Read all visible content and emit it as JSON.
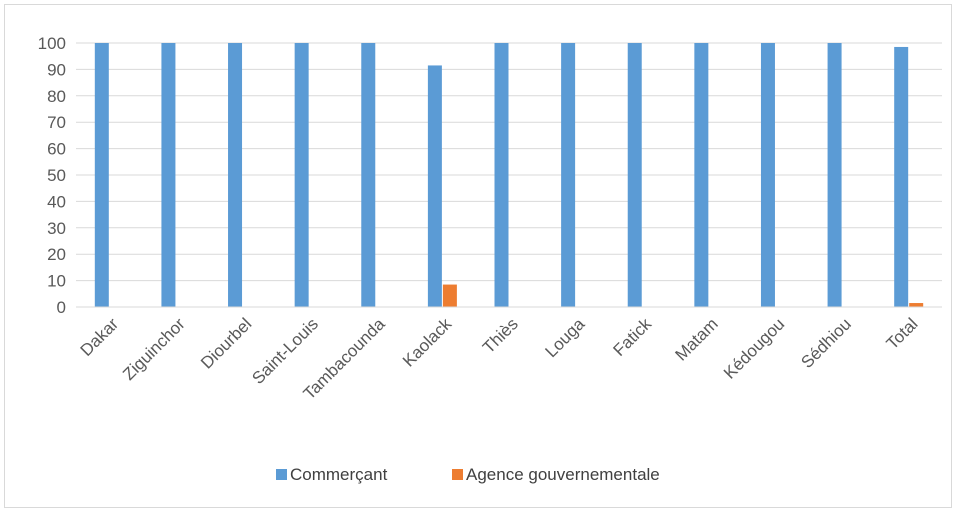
{
  "chart_data": {
    "type": "bar",
    "categories": [
      "Dakar",
      "Ziguinchor",
      "Diourbel",
      "Saint-Louis",
      "Tambacounda",
      "Kaolack",
      "Thiès",
      "Louga",
      "Fatick",
      "Matam",
      "Kédougou",
      "Sédhiou",
      "Total"
    ],
    "series": [
      {
        "name": "Commerçant",
        "color": "#5b9bd5",
        "values": [
          100,
          100,
          100,
          100,
          100,
          91.5,
          100,
          100,
          100,
          100,
          100,
          100,
          98.5
        ]
      },
      {
        "name": "Agence gouvernementale",
        "color": "#ed7d31",
        "values": [
          0,
          0,
          0,
          0,
          0,
          8.5,
          0,
          0,
          0,
          0,
          0,
          0,
          1.5
        ]
      }
    ],
    "ylim": [
      0,
      100
    ],
    "yticks": [
      0,
      10,
      20,
      30,
      40,
      50,
      60,
      70,
      80,
      90,
      100
    ],
    "grid": true,
    "legend": "bottom-center",
    "title": "",
    "xlabel": "",
    "ylabel": ""
  }
}
